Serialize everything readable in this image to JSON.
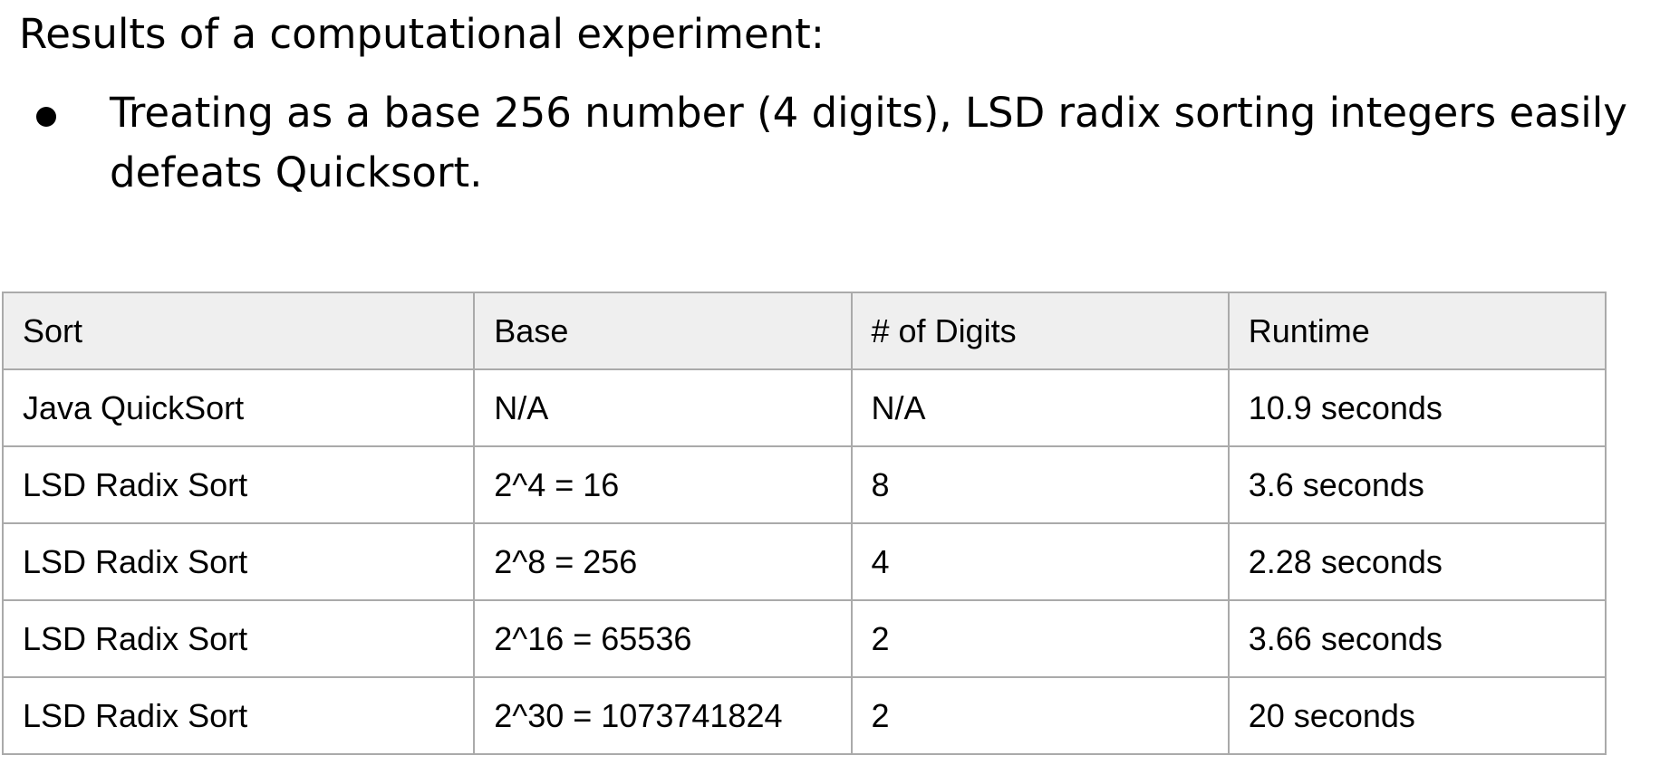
{
  "heading": "Results of a computational experiment:",
  "bullets": [
    {
      "text": "Treating as a base 256 number (4 digits), LSD radix sorting integers easily defeats Quicksort."
    }
  ],
  "table": {
    "headers": [
      "Sort",
      "Base",
      "# of Digits",
      "Runtime"
    ],
    "rows": [
      [
        "Java QuickSort",
        "N/A",
        "N/A",
        "10.9 seconds"
      ],
      [
        "LSD Radix Sort",
        "2^4 = 16",
        "8",
        "3.6 seconds"
      ],
      [
        "LSD Radix Sort",
        "2^8 = 256",
        "4",
        "2.28 seconds"
      ],
      [
        "LSD Radix Sort",
        "2^16 = 65536",
        "2",
        "3.66 seconds"
      ],
      [
        "LSD Radix Sort",
        "2^30 = 1073741824",
        "2",
        "20 seconds"
      ]
    ]
  },
  "colors": {
    "header_background": "#efefef",
    "grid_line": "#aaaaaa",
    "text": "#000000"
  }
}
